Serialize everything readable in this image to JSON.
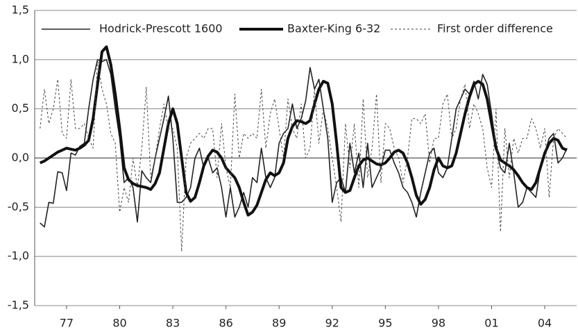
{
  "chart_data": {
    "type": "line",
    "x": [
      1975.5,
      1975.75,
      1976,
      1976.25,
      1976.5,
      1976.75,
      1977,
      1977.25,
      1977.5,
      1977.75,
      1978,
      1978.25,
      1978.5,
      1978.75,
      1979,
      1979.25,
      1979.5,
      1979.75,
      1980,
      1980.25,
      1980.5,
      1980.75,
      1981,
      1981.25,
      1981.5,
      1981.75,
      1982,
      1982.25,
      1982.5,
      1982.75,
      1983,
      1983.25,
      1983.5,
      1983.75,
      1984,
      1984.25,
      1984.5,
      1984.75,
      1985,
      1985.25,
      1985.5,
      1985.75,
      1986,
      1986.25,
      1986.5,
      1986.75,
      1987,
      1987.25,
      1987.5,
      1987.75,
      1988,
      1988.25,
      1988.5,
      1988.75,
      1989,
      1989.25,
      1989.5,
      1989.75,
      1990,
      1990.25,
      1990.5,
      1990.75,
      1991,
      1991.25,
      1991.5,
      1991.75,
      1992,
      1992.25,
      1992.5,
      1992.75,
      1993,
      1993.25,
      1993.5,
      1993.75,
      1994,
      1994.25,
      1994.5,
      1994.75,
      1995,
      1995.25,
      1995.5,
      1995.75,
      1996,
      1996.25,
      1996.5,
      1996.75,
      1997,
      1997.25,
      1997.5,
      1997.75,
      1998,
      1998.25,
      1998.5,
      1998.75,
      1999,
      1999.25,
      1999.5,
      1999.75,
      2000,
      2000.25,
      2000.5,
      2000.75,
      2001,
      2001.25,
      2001.5,
      2001.75,
      2002,
      2002.25,
      2002.5,
      2002.75,
      2003,
      2003.25,
      2003.5,
      2003.75,
      2004,
      2004.25,
      2004.5,
      2004.75,
      2005,
      2005.25
    ],
    "series": [
      {
        "name": "Hodrick-Prescott 1600",
        "color": "#222222",
        "line_width": 1.6,
        "dash": "solid",
        "values": [
          -0.66,
          -0.7,
          -0.45,
          -0.46,
          -0.14,
          -0.15,
          -0.33,
          0.05,
          0.03,
          0.12,
          0.15,
          0.5,
          0.8,
          1.0,
          0.98,
          1.0,
          0.85,
          0.5,
          0.2,
          -0.25,
          -0.2,
          -0.3,
          -0.65,
          -0.13,
          -0.2,
          -0.25,
          0.0,
          0.2,
          0.4,
          0.63,
          0.2,
          -0.45,
          -0.45,
          -0.4,
          -0.3,
          0.0,
          0.1,
          -0.1,
          0.0,
          -0.15,
          -0.1,
          -0.3,
          -0.6,
          -0.3,
          -0.6,
          -0.5,
          -0.35,
          -0.5,
          -0.2,
          -0.25,
          0.1,
          -0.2,
          -0.3,
          -0.2,
          0.15,
          0.25,
          0.3,
          0.55,
          0.3,
          0.4,
          0.58,
          0.92,
          0.7,
          0.8,
          0.5,
          0.2,
          -0.45,
          -0.25,
          -0.2,
          -0.35,
          0.15,
          -0.15,
          0.05,
          -0.3,
          0.15,
          -0.3,
          -0.2,
          -0.1,
          0.08,
          0.08,
          -0.05,
          -0.15,
          -0.3,
          -0.35,
          -0.45,
          -0.6,
          -0.35,
          -0.15,
          0.05,
          0.1,
          -0.15,
          -0.2,
          -0.1,
          0.2,
          0.5,
          0.6,
          0.7,
          0.65,
          0.78,
          0.6,
          0.85,
          0.75,
          0.45,
          0.1,
          -0.1,
          -0.15,
          0.15,
          -0.15,
          -0.5,
          -0.45,
          -0.3,
          -0.35,
          -0.4,
          -0.1,
          0.05,
          0.2,
          0.25,
          -0.05,
          0.0,
          0.1
        ]
      },
      {
        "name": "Baxter-King 6-32",
        "color": "#111111",
        "line_width": 4,
        "dash": "solid",
        "values": [
          -0.05,
          -0.03,
          0.0,
          0.03,
          0.06,
          0.08,
          0.1,
          0.09,
          0.08,
          0.1,
          0.13,
          0.18,
          0.4,
          0.75,
          1.08,
          1.13,
          0.95,
          0.65,
          0.3,
          -0.1,
          -0.22,
          -0.26,
          -0.28,
          -0.29,
          -0.3,
          -0.32,
          -0.26,
          -0.15,
          0.1,
          0.35,
          0.5,
          0.35,
          0.0,
          -0.35,
          -0.44,
          -0.4,
          -0.25,
          -0.08,
          0.02,
          0.08,
          0.06,
          0.0,
          -0.1,
          -0.15,
          -0.2,
          -0.3,
          -0.45,
          -0.58,
          -0.55,
          -0.48,
          -0.35,
          -0.22,
          -0.15,
          -0.18,
          -0.15,
          -0.05,
          0.2,
          0.32,
          0.38,
          0.37,
          0.35,
          0.38,
          0.55,
          0.7,
          0.78,
          0.76,
          0.55,
          0.15,
          -0.3,
          -0.35,
          -0.33,
          -0.2,
          -0.08,
          -0.02,
          0.0,
          -0.03,
          -0.06,
          -0.07,
          -0.05,
          0.0,
          0.06,
          0.08,
          0.05,
          -0.05,
          -0.2,
          -0.38,
          -0.47,
          -0.42,
          -0.3,
          -0.12,
          0.0,
          -0.08,
          -0.1,
          -0.08,
          0.05,
          0.25,
          0.45,
          0.62,
          0.75,
          0.78,
          0.75,
          0.6,
          0.35,
          0.1,
          -0.02,
          -0.05,
          -0.08,
          -0.12,
          -0.18,
          -0.25,
          -0.3,
          -0.32,
          -0.25,
          -0.1,
          0.05,
          0.15,
          0.2,
          0.18,
          0.1,
          0.08
        ]
      },
      {
        "name": "First order difference",
        "color": "#444444",
        "line_width": 1,
        "dash": "dashed",
        "values": [
          0.3,
          0.7,
          0.35,
          0.5,
          0.8,
          0.25,
          0.2,
          0.8,
          0.3,
          0.3,
          0.35,
          0.2,
          0.1,
          1.0,
          0.7,
          0.55,
          0.25,
          0.15,
          -0.55,
          -0.3,
          -0.45,
          0.0,
          -0.3,
          0.1,
          0.72,
          -0.2,
          0.0,
          0.3,
          0.55,
          0.3,
          0.3,
          0.1,
          -0.95,
          0.0,
          0.15,
          0.2,
          0.25,
          0.2,
          0.3,
          0.3,
          -0.2,
          0.35,
          -0.1,
          -0.3,
          0.65,
          0.0,
          0.25,
          0.2,
          0.25,
          0.2,
          0.7,
          0.1,
          0.45,
          0.6,
          0.3,
          0.0,
          0.6,
          0.3,
          0.2,
          0.55,
          0.0,
          0.1,
          0.7,
          0.15,
          0.5,
          0.3,
          0.0,
          -0.3,
          -0.65,
          0.35,
          -0.1,
          0.35,
          -0.3,
          0.6,
          -0.2,
          0.1,
          0.65,
          -0.25,
          0.35,
          0.3,
          0.1,
          0.0,
          -0.25,
          0.0,
          0.4,
          0.4,
          0.35,
          0.45,
          -0.05,
          0.2,
          0.2,
          0.55,
          0.65,
          0.2,
          0.3,
          0.6,
          0.75,
          0.3,
          0.55,
          0.45,
          0.3,
          -0.1,
          -0.3,
          0.5,
          -0.75,
          0.3,
          -0.2,
          0.2,
          0.05,
          0.2,
          0.2,
          0.4,
          0.3,
          0.1,
          0.3,
          -0.4,
          0.2,
          0.3,
          0.25,
          0.2
        ]
      }
    ],
    "xlim": [
      1975.2,
      2005.8
    ],
    "xticks": [
      {
        "value": 1977,
        "label": "77"
      },
      {
        "value": 1980,
        "label": "80"
      },
      {
        "value": 1983,
        "label": "83"
      },
      {
        "value": 1986,
        "label": "86"
      },
      {
        "value": 1989,
        "label": "89"
      },
      {
        "value": 1992,
        "label": "92"
      },
      {
        "value": 1995,
        "label": "95"
      },
      {
        "value": 1998,
        "label": "98"
      },
      {
        "value": 2001,
        "label": "01"
      },
      {
        "value": 2004,
        "label": "04"
      }
    ],
    "ylim": [
      -1.5,
      1.5
    ],
    "yticks": [
      {
        "value": -1.5,
        "label": "-1,5"
      },
      {
        "value": -1.0,
        "label": "-1,0"
      },
      {
        "value": -0.5,
        "label": "-0,5"
      },
      {
        "value": 0,
        "label": "0,0"
      },
      {
        "value": 0.5,
        "label": "0,5"
      },
      {
        "value": 1.0,
        "label": "1,0"
      },
      {
        "value": 1.5,
        "label": "1,5"
      }
    ],
    "grid": true,
    "legend": "top"
  }
}
